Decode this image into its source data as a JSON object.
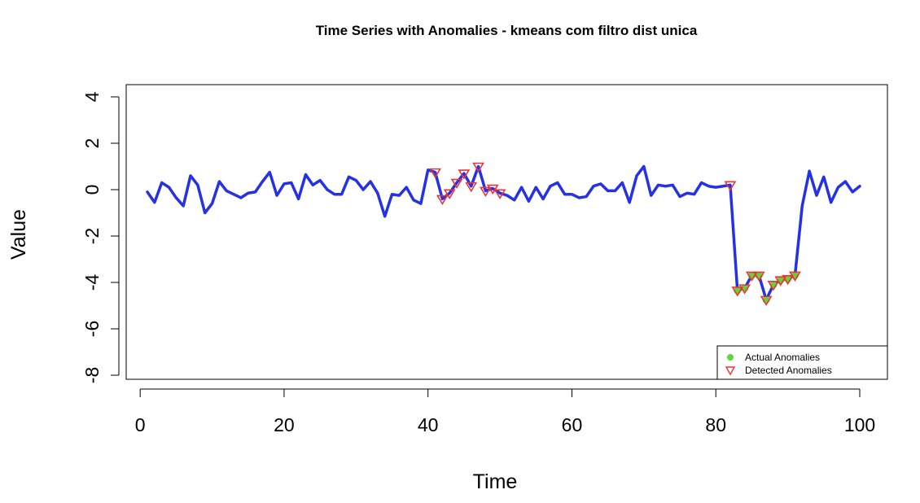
{
  "chart_data": {
    "type": "line",
    "title": "Time Series with Anomalies - kmeans com filtro dist unica",
    "xlabel": "Time",
    "ylabel": "Value",
    "xlim": [
      1,
      100
    ],
    "ylim": [
      -8,
      4
    ],
    "x_ticks": [
      0,
      20,
      40,
      60,
      80,
      100
    ],
    "y_ticks": [
      -8,
      -6,
      -4,
      -2,
      0,
      2,
      4
    ],
    "grid": false,
    "legend_position": "bottom-right",
    "series": [
      {
        "x": [
          1,
          2,
          3,
          4,
          5,
          6,
          7,
          8,
          9,
          10,
          11,
          12,
          13,
          14,
          15,
          16,
          17,
          18,
          19,
          20,
          21,
          22,
          23,
          24,
          25,
          26,
          27,
          28,
          29,
          30,
          31,
          32,
          33,
          34,
          35,
          36,
          37,
          38,
          39,
          40,
          41,
          42,
          43,
          44,
          45,
          46,
          47,
          48,
          49,
          50,
          51,
          52,
          53,
          54,
          55,
          56,
          57,
          58,
          59,
          60,
          61,
          62,
          63,
          64,
          65,
          66,
          67,
          68,
          69,
          70,
          71,
          72,
          73,
          74,
          75,
          76,
          77,
          78,
          79,
          80,
          81,
          82,
          83,
          84,
          85,
          86,
          87,
          88,
          89,
          90,
          91,
          92,
          93,
          94,
          95,
          96,
          97,
          98,
          99,
          100
        ],
        "values": [
          -0.1,
          -0.55,
          0.3,
          0.1,
          -0.35,
          -0.7,
          0.6,
          0.2,
          -1.0,
          -0.6,
          0.35,
          -0.05,
          -0.2,
          -0.35,
          -0.15,
          -0.1,
          0.35,
          0.75,
          -0.25,
          0.25,
          0.3,
          -0.4,
          0.65,
          0.2,
          0.4,
          0.0,
          -0.2,
          -0.2,
          0.55,
          0.4,
          0.0,
          0.35,
          -0.15,
          -1.15,
          -0.2,
          -0.25,
          0.1,
          -0.45,
          -0.6,
          0.85,
          0.75,
          -0.4,
          -0.15,
          0.3,
          0.7,
          0.15,
          1.0,
          -0.05,
          0.05,
          -0.15,
          -0.25,
          -0.45,
          0.1,
          -0.5,
          0.1,
          -0.4,
          0.15,
          0.3,
          -0.2,
          -0.2,
          -0.35,
          -0.3,
          0.15,
          0.25,
          -0.05,
          -0.05,
          0.3,
          -0.55,
          0.6,
          1.0,
          -0.25,
          0.2,
          0.15,
          0.2,
          -0.3,
          -0.15,
          -0.2,
          0.3,
          0.15,
          0.1,
          0.15,
          0.2,
          -4.35,
          -4.25,
          -3.7,
          -3.7,
          -4.75,
          -4.1,
          -3.9,
          -3.85,
          -3.7,
          -0.7,
          0.8,
          -0.25,
          0.55,
          -0.55,
          0.1,
          0.35,
          -0.1,
          0.15
        ],
        "color": "#2431e6"
      }
    ],
    "actual_anomalies": {
      "x": [
        83,
        84,
        85,
        86,
        87,
        88,
        89,
        90,
        91
      ],
      "y": [
        -4.35,
        -4.25,
        -3.7,
        -3.7,
        -4.75,
        -4.1,
        -3.9,
        -3.85,
        -3.7
      ],
      "color": "#5fd63a"
    },
    "detected_anomalies": {
      "x": [
        41,
        42,
        43,
        44,
        45,
        46,
        47,
        48,
        49,
        50,
        82,
        83,
        84,
        85,
        86,
        87,
        88,
        89,
        90,
        91
      ],
      "y": [
        0.75,
        -0.4,
        -0.15,
        0.3,
        0.7,
        0.15,
        1.0,
        -0.05,
        0.05,
        -0.15,
        0.2,
        -4.35,
        -4.25,
        -3.7,
        -3.7,
        -4.75,
        -4.1,
        -3.9,
        -3.85,
        -3.7
      ],
      "color": "#ee3333"
    },
    "legend": [
      {
        "label": "Actual Anomalies",
        "marker": "dot",
        "color": "#5fd63a"
      },
      {
        "label": "Detected Anomalies",
        "marker": "triangle-down",
        "color": "#ee3333"
      }
    ]
  }
}
